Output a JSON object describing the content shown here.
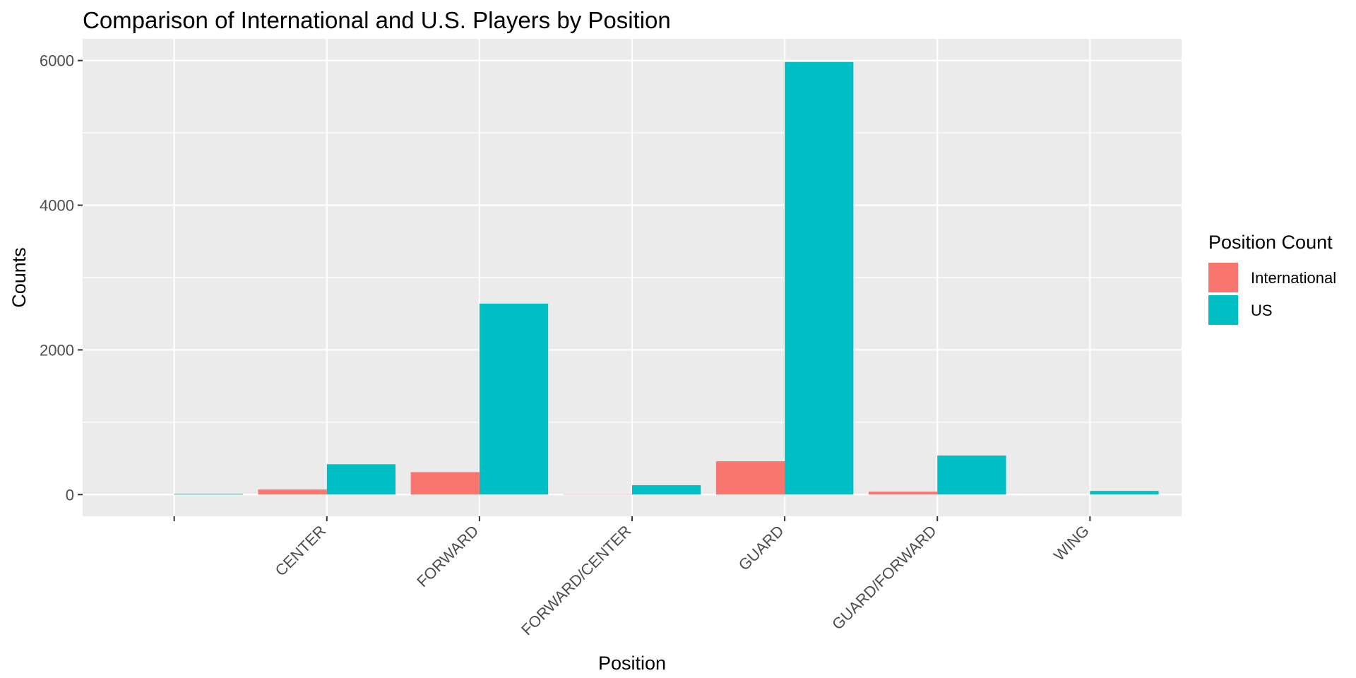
{
  "chart_data": {
    "type": "bar",
    "title": "Comparison of International and U.S. Players by Position",
    "xlabel": "Position",
    "ylabel": "Counts",
    "categories": [
      "",
      "CENTER",
      "FORWARD",
      "FORWARD/CENTER",
      "GUARD",
      "GUARD/FORWARD",
      "WING"
    ],
    "series": [
      {
        "name": "International",
        "color": "#F8766D",
        "values": [
          0,
          70,
          310,
          5,
          460,
          40,
          0
        ]
      },
      {
        "name": "US",
        "color": "#00BFC4",
        "values": [
          10,
          420,
          2640,
          130,
          5980,
          540,
          50
        ]
      }
    ],
    "ylim": [
      -300,
      6300
    ],
    "yticks": [
      0,
      2000,
      4000,
      6000
    ],
    "grid": true,
    "legend": {
      "title": "Position Count",
      "position": "right"
    },
    "panel_background": "#EBEBEB",
    "grid_color": "#FFFFFF"
  }
}
